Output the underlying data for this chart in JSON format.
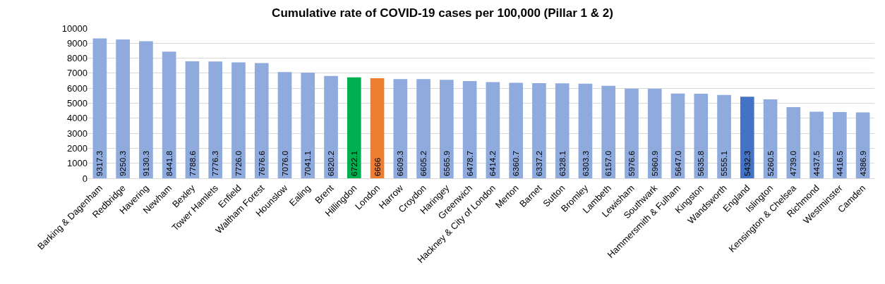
{
  "chart_data": {
    "type": "bar",
    "title": "Cumulative rate of COVID-19 cases per 100,000 (Pillar 1 & 2)",
    "categories": [
      "Barking & Dagenham",
      "Redbridge",
      "Havering",
      "Newham",
      "Bexley",
      "Tower Hamlets",
      "Enfield",
      "Waltham Forest",
      "Hounslow",
      "Ealing",
      "Brent",
      "Hillingdon",
      "London",
      "Harrow",
      "Croydon",
      "Haringey",
      "Greenwich",
      "Hackney & City of London",
      "Merton",
      "Barnet",
      "Sutton",
      "Bromley",
      "Lambeth",
      "Lewisham",
      "Southwark",
      "Hammersmith & Fulham",
      "Kingston",
      "Wandsworth",
      "England",
      "Islington",
      "Kensington & Chelsea",
      "Richmond",
      "Westminster",
      "Camden"
    ],
    "values": [
      9317.3,
      9250.3,
      9130.3,
      8441.8,
      7788.6,
      7776.3,
      7726.0,
      7676.6,
      7076.0,
      7041.1,
      6820.2,
      6722.1,
      6666,
      6609.3,
      6605.2,
      6565.9,
      6478.7,
      6414.2,
      6360.7,
      6337.2,
      6328.1,
      6303.3,
      6157.0,
      5976.6,
      5960.9,
      5647.0,
      5635.8,
      5555.1,
      5432.3,
      5260.5,
      4739.0,
      4437.5,
      4416.5,
      4386.9
    ],
    "value_labels": [
      "9317.3",
      "9250.3",
      "9130.3",
      "8441.8",
      "7788.6",
      "7776.3",
      "7726.0",
      "7676.6",
      "7076.0",
      "7041.1",
      "6820.2",
      "6722.1",
      "6666",
      "6609.3",
      "6605.2",
      "6565.9",
      "6478.7",
      "6414.2",
      "6360.7",
      "6337.2",
      "6328.1",
      "6303.3",
      "6157.0",
      "5976.6",
      "5960.9",
      "5647.0",
      "5635.8",
      "5555.1",
      "5432.3",
      "5260.5",
      "4739.0",
      "4437.5",
      "4416.5",
      "4386.9"
    ],
    "colors": [
      "#8faadc",
      "#8faadc",
      "#8faadc",
      "#8faadc",
      "#8faadc",
      "#8faadc",
      "#8faadc",
      "#8faadc",
      "#8faadc",
      "#8faadc",
      "#8faadc",
      "#00b050",
      "#ed7d31",
      "#8faadc",
      "#8faadc",
      "#8faadc",
      "#8faadc",
      "#8faadc",
      "#8faadc",
      "#8faadc",
      "#8faadc",
      "#8faadc",
      "#8faadc",
      "#8faadc",
      "#8faadc",
      "#8faadc",
      "#8faadc",
      "#8faadc",
      "#4472c4",
      "#8faadc",
      "#8faadc",
      "#8faadc",
      "#8faadc",
      "#8faadc"
    ],
    "ylim": [
      0,
      10000
    ],
    "yticks": [
      0,
      1000,
      2000,
      3000,
      4000,
      5000,
      6000,
      7000,
      8000,
      9000,
      10000
    ],
    "grid": "y",
    "legend": false
  }
}
